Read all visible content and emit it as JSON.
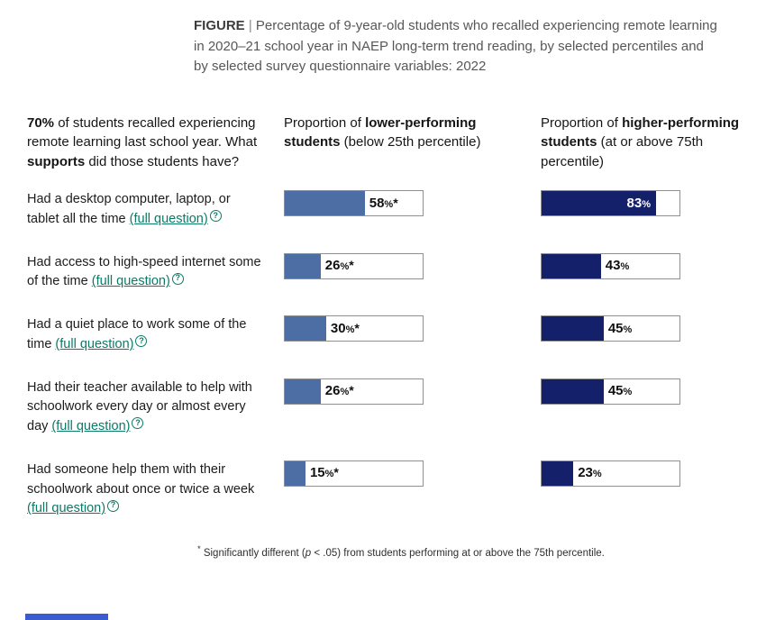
{
  "figure": {
    "label": "FIGURE",
    "divider": " | ",
    "title": "Percentage of 9-year-old students who recalled experiencing remote learning in 2020–21 school year in NAEP long-term trend reading, by selected percentiles and by selected survey questionnaire variables: 2022"
  },
  "headers": {
    "intro": {
      "bold1": "70%",
      "text1": " of students recalled experiencing remote learning last school year. What ",
      "bold2": "supports",
      "text2": " did those students have?"
    },
    "lower": {
      "pre": "Proportion of ",
      "bold": "lower-performing students",
      "post": " (below 25th percentile)"
    },
    "higher": {
      "pre": "Proportion of ",
      "bold": "higher-performing students",
      "post": " (at or above 75th percentile)"
    }
  },
  "help_icon": "?",
  "rows": [
    {
      "question": "Had a desktop computer, laptop, or tablet all the time ",
      "link": "(full question)",
      "lower": {
        "value": 58,
        "num": "58",
        "pct": "%",
        "star": "*"
      },
      "higher": {
        "value": 83,
        "num": "83",
        "pct": "%",
        "star": ""
      }
    },
    {
      "question": "Had access to high-speed internet some of the time ",
      "link": "(full question)",
      "lower": {
        "value": 26,
        "num": "26",
        "pct": "%",
        "star": "*"
      },
      "higher": {
        "value": 43,
        "num": "43",
        "pct": "%",
        "star": ""
      }
    },
    {
      "question": "Had a quiet place to work some of the time ",
      "link": "(full question)",
      "lower": {
        "value": 30,
        "num": "30",
        "pct": "%",
        "star": "*"
      },
      "higher": {
        "value": 45,
        "num": "45",
        "pct": "%",
        "star": ""
      }
    },
    {
      "question": "Had their teacher available to help with schoolwork every day or almost every day ",
      "link": "(full question)",
      "lower": {
        "value": 26,
        "num": "26",
        "pct": "%",
        "star": "*"
      },
      "higher": {
        "value": 45,
        "num": "45",
        "pct": "%",
        "star": ""
      }
    },
    {
      "question": "Had someone help them with their schoolwork about once or twice a week ",
      "link": "(full question)",
      "lower": {
        "value": 15,
        "num": "15",
        "pct": "%",
        "star": "*"
      },
      "higher": {
        "value": 23,
        "num": "23",
        "pct": "%",
        "star": ""
      }
    }
  ],
  "footnote": {
    "star": "*",
    "part1": " Significantly different (",
    "p": "p",
    "part2": " < .05) from students performing at or above the 75th percentile."
  },
  "colors": {
    "lower_bar": "#4d6da5",
    "higher_bar": "#15206b",
    "link": "#0a7b66",
    "footer_accent": "#3b5bd0"
  },
  "chart_data": {
    "type": "bar",
    "orientation": "horizontal",
    "unit": "%",
    "xlim": [
      0,
      100
    ],
    "categories": [
      "Had a desktop computer, laptop, or tablet all the time",
      "Had access to high-speed internet some of the time",
      "Had a quiet place to work some of the time",
      "Had their teacher available to help with schoolwork every day or almost every day",
      "Had someone help them with their schoolwork about once or twice a week"
    ],
    "series": [
      {
        "name": "Proportion of lower-performing students (below 25th percentile)",
        "values": [
          58,
          26,
          30,
          26,
          15
        ],
        "significant": [
          true,
          true,
          true,
          true,
          true
        ],
        "color": "#4d6da5"
      },
      {
        "name": "Proportion of higher-performing students (at or above 75th percentile)",
        "values": [
          83,
          43,
          45,
          45,
          23
        ],
        "significant": [
          false,
          false,
          false,
          false,
          false
        ],
        "color": "#15206b"
      }
    ],
    "title": "Percentage of 9-year-old students who recalled experiencing remote learning in 2020–21 school year in NAEP long-term trend reading, by selected percentiles and by selected survey questionnaire variables: 2022",
    "footnote": "* Significantly different (p < .05) from students performing at or above the 75th percentile.",
    "legend_position": "column headers",
    "grid": false
  }
}
